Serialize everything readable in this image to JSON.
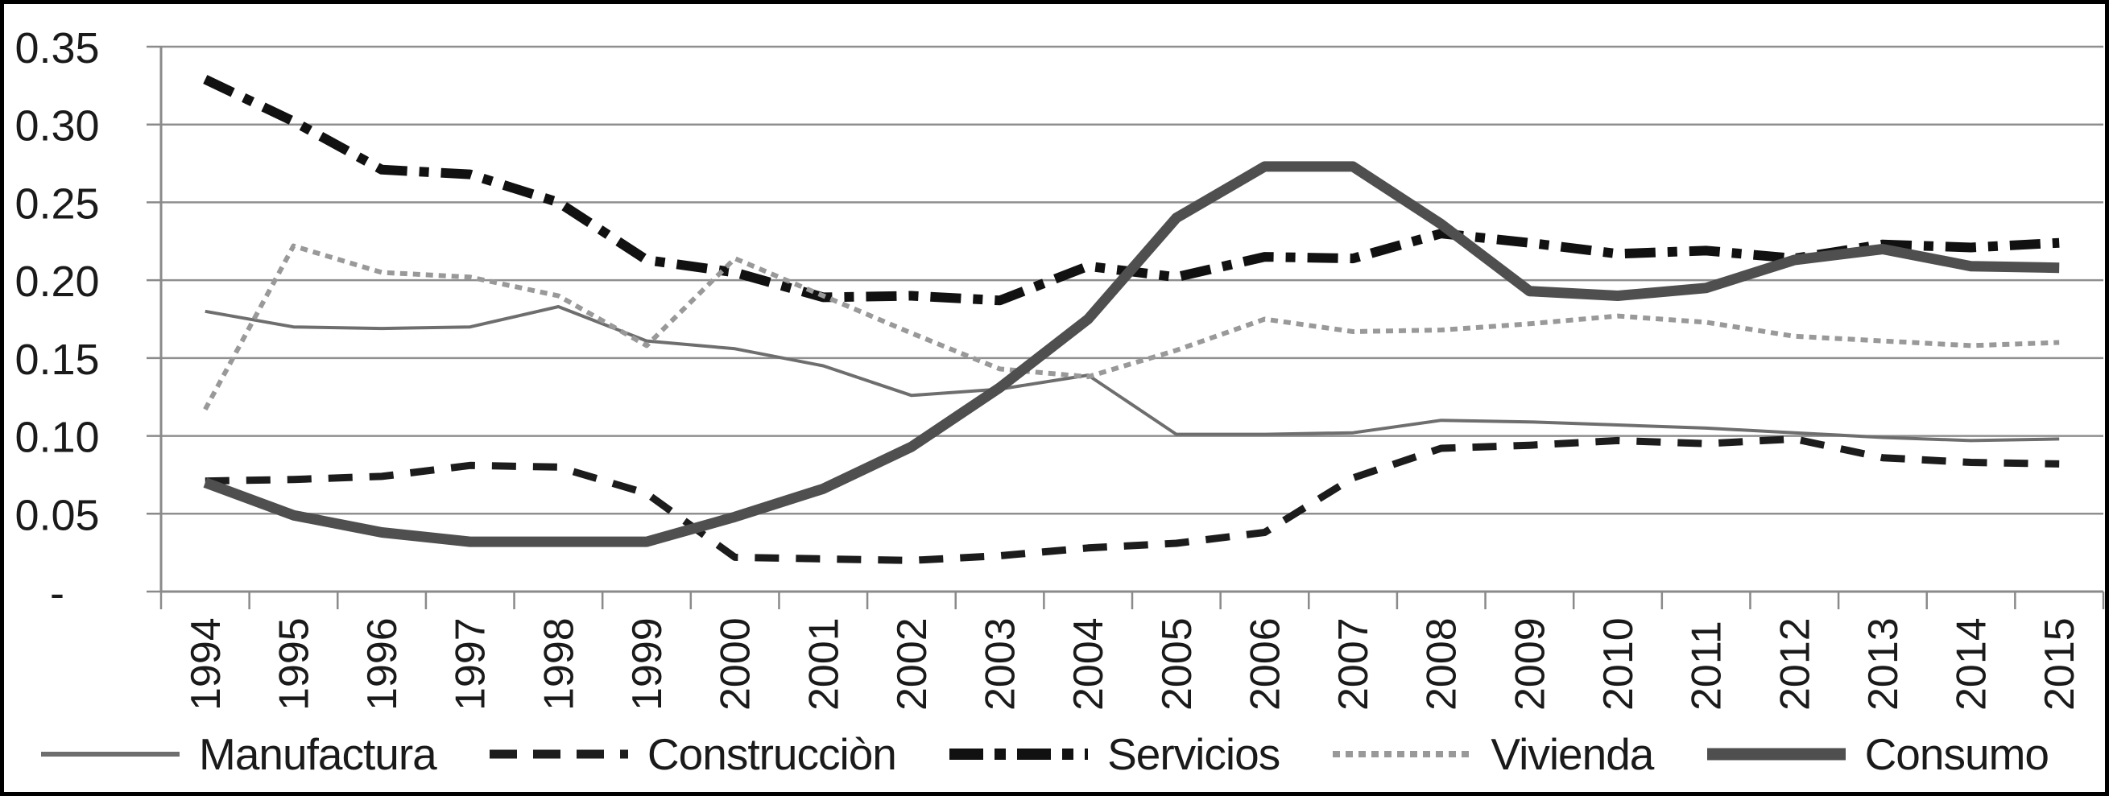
{
  "chart_data": {
    "type": "line",
    "title": "",
    "xlabel": "",
    "ylabel": "",
    "ylim": [
      0,
      0.35
    ],
    "grid": true,
    "legend_position": "bottom",
    "categories": [
      "1994",
      "1995",
      "1996",
      "1997",
      "1998",
      "1999",
      "2000",
      "2001",
      "2002",
      "2003",
      "2004",
      "2005",
      "2006",
      "2007",
      "2008",
      "2009",
      "2010",
      "2011",
      "2012",
      "2013",
      "2014",
      "2015"
    ],
    "series": [
      {
        "name": "Manufactura",
        "style": "solid-thin",
        "color": "#6e6e6e",
        "values": [
          0.18,
          0.17,
          0.169,
          0.17,
          0.183,
          0.161,
          0.156,
          0.145,
          0.126,
          0.13,
          0.139,
          0.101,
          0.101,
          0.102,
          0.11,
          0.109,
          0.107,
          0.105,
          0.102,
          0.099,
          0.097,
          0.098
        ]
      },
      {
        "name": "Construcciòn",
        "style": "dashed",
        "color": "#1c1c1c",
        "values": [
          0.071,
          0.072,
          0.074,
          0.081,
          0.08,
          0.063,
          0.022,
          0.021,
          0.02,
          0.023,
          0.028,
          0.031,
          0.038,
          0.073,
          0.092,
          0.094,
          0.097,
          0.095,
          0.098,
          0.086,
          0.083,
          0.082
        ]
      },
      {
        "name": "Servicios",
        "style": "dash-dot",
        "color": "#111111",
        "values": [
          0.329,
          0.302,
          0.271,
          0.268,
          0.25,
          0.213,
          0.205,
          0.189,
          0.19,
          0.187,
          0.209,
          0.202,
          0.215,
          0.214,
          0.23,
          0.224,
          0.217,
          0.219,
          0.214,
          0.223,
          0.221,
          0.224
        ]
      },
      {
        "name": "Vivienda",
        "style": "dotted",
        "color": "#999999",
        "values": [
          0.117,
          0.222,
          0.205,
          0.202,
          0.19,
          0.158,
          0.214,
          0.19,
          0.166,
          0.143,
          0.138,
          0.155,
          0.175,
          0.167,
          0.168,
          0.172,
          0.177,
          0.173,
          0.164,
          0.161,
          0.158,
          0.16
        ]
      },
      {
        "name": "Consumo",
        "style": "solid-thick",
        "color": "#4f4f4f",
        "values": [
          0.07,
          0.049,
          0.038,
          0.032,
          0.032,
          0.032,
          0.048,
          0.066,
          0.093,
          0.131,
          0.175,
          0.24,
          0.273,
          0.273,
          0.236,
          0.193,
          0.19,
          0.195,
          0.213,
          0.22,
          0.209,
          0.208
        ]
      }
    ]
  },
  "y_axis": {
    "tick_labels": [
      "0.35",
      "0.30",
      "0.25",
      "0.20",
      "0.15",
      "0.10",
      "0.05",
      "-"
    ],
    "tick_values": [
      0.35,
      0.3,
      0.25,
      0.2,
      0.15,
      0.1,
      0.05,
      0
    ]
  },
  "colors": {
    "background": "#ffffff",
    "frame": "#000000",
    "gridline": "#8f8f8f",
    "axis": "#8a8a8a",
    "label_text": "#1a1a1a"
  }
}
